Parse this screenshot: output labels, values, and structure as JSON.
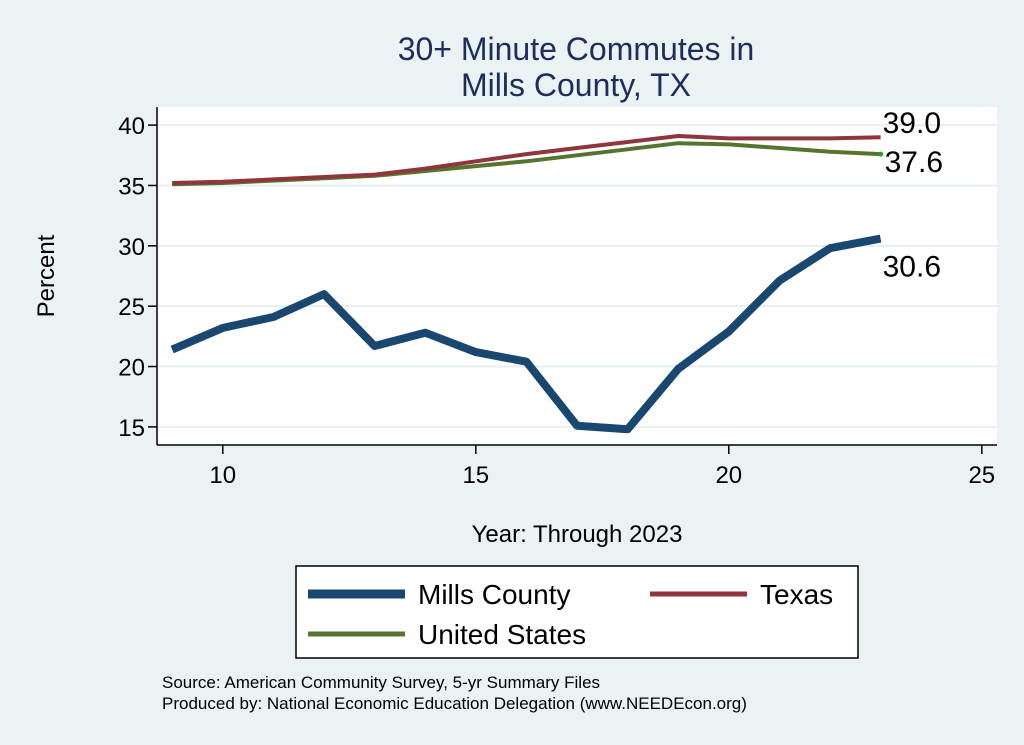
{
  "chart_data": {
    "type": "line",
    "title": [
      "30+ Minute Commutes in",
      "Mills County, TX"
    ],
    "xlabel": "Year: Through 2023",
    "ylabel": "Percent",
    "xlim": [
      8.7,
      25.3
    ],
    "ylim": [
      13.5,
      41.5
    ],
    "xticks": [
      10,
      15,
      20,
      25
    ],
    "yticks": [
      15,
      20,
      25,
      30,
      35,
      40
    ],
    "grid": true,
    "series": [
      {
        "name": "Mills County",
        "color": "#1a476f",
        "width": 8,
        "x": [
          9,
          10,
          11,
          12,
          13,
          14,
          15,
          16,
          17,
          18,
          19,
          20,
          21,
          22,
          23
        ],
        "values": [
          21.4,
          23.2,
          24.1,
          26.0,
          21.7,
          22.8,
          21.2,
          20.4,
          15.1,
          14.8,
          19.8,
          22.9,
          27.1,
          29.8,
          30.6
        ],
        "end_label": "30.6"
      },
      {
        "name": "Texas",
        "color": "#90353b",
        "width": 4,
        "x": [
          9,
          10,
          11,
          12,
          13,
          14,
          15,
          16,
          17,
          18,
          19,
          20,
          21,
          22,
          23
        ],
        "values": [
          35.2,
          35.3,
          35.5,
          35.7,
          35.9,
          36.4,
          37.0,
          37.6,
          38.1,
          38.6,
          39.1,
          38.9,
          38.9,
          38.9,
          39.0
        ],
        "end_label": "39.0"
      },
      {
        "name": "United States",
        "color": "#55752f",
        "width": 4,
        "x": [
          9,
          10,
          11,
          12,
          13,
          14,
          15,
          16,
          17,
          18,
          19,
          20,
          21,
          22,
          23
        ],
        "values": [
          35.1,
          35.2,
          35.4,
          35.6,
          35.8,
          36.2,
          36.6,
          37.0,
          37.5,
          38.0,
          38.5,
          38.4,
          38.1,
          37.8,
          37.6
        ],
        "end_label": "37.6"
      }
    ],
    "legend": {
      "position": "bottom",
      "entries": [
        "Mills County",
        "Texas",
        "United States"
      ]
    },
    "notes": [
      "Source: American Community Survey, 5-yr Summary Files",
      "Produced by: National Economic Education Delegation (www.NEEDEcon.org)"
    ]
  }
}
